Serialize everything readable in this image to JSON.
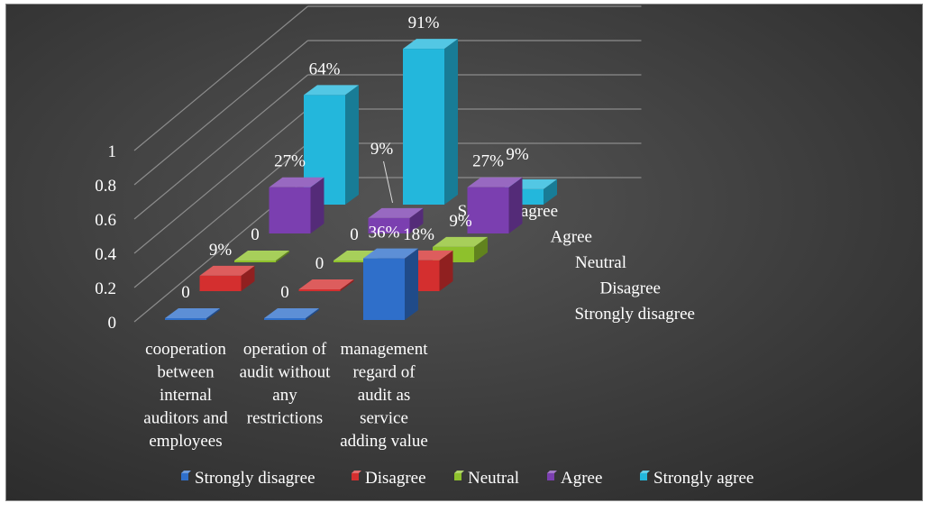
{
  "chart_data": {
    "type": "bar",
    "subtype": "3d-column",
    "categories": [
      "cooperation between internal auditors and employees",
      "operation of audit without any restrictions",
      "management regard of audit as service adding value"
    ],
    "category_lines": [
      [
        "cooperation",
        "between",
        "internal",
        "auditors and",
        "employees"
      ],
      [
        "operation of",
        "audit without",
        "any",
        "restrictions"
      ],
      [
        "management",
        "regard of",
        "audit as",
        "service",
        "adding value"
      ]
    ],
    "series": [
      {
        "name": "Strongly disagree",
        "color": "#2f6fca",
        "values": [
          0,
          0,
          0.36
        ],
        "labels": [
          "0",
          "0",
          "36%"
        ]
      },
      {
        "name": "Disagree",
        "color": "#d42f2f",
        "values": [
          0.09,
          0,
          0.18
        ],
        "labels": [
          "9%",
          "0",
          "18%"
        ]
      },
      {
        "name": "Neutral",
        "color": "#8ec12c",
        "values": [
          0,
          0,
          0.09
        ],
        "labels": [
          "0",
          "0",
          "9%"
        ]
      },
      {
        "name": "Agree",
        "color": "#7b3fb0",
        "values": [
          0.27,
          0.09,
          0.27
        ],
        "labels": [
          "27%",
          "9%",
          "27%"
        ]
      },
      {
        "name": "Strongly agree",
        "color": "#23b7dc",
        "values": [
          0.64,
          0.91,
          0.09
        ],
        "labels": [
          "64%",
          "91%",
          "9%"
        ]
      }
    ],
    "yticks": [
      "0",
      "0.2",
      "0.4",
      "0.6",
      "0.8",
      "1"
    ],
    "ylim": [
      0,
      1
    ],
    "legend_position": "bottom",
    "background": "#404040"
  }
}
